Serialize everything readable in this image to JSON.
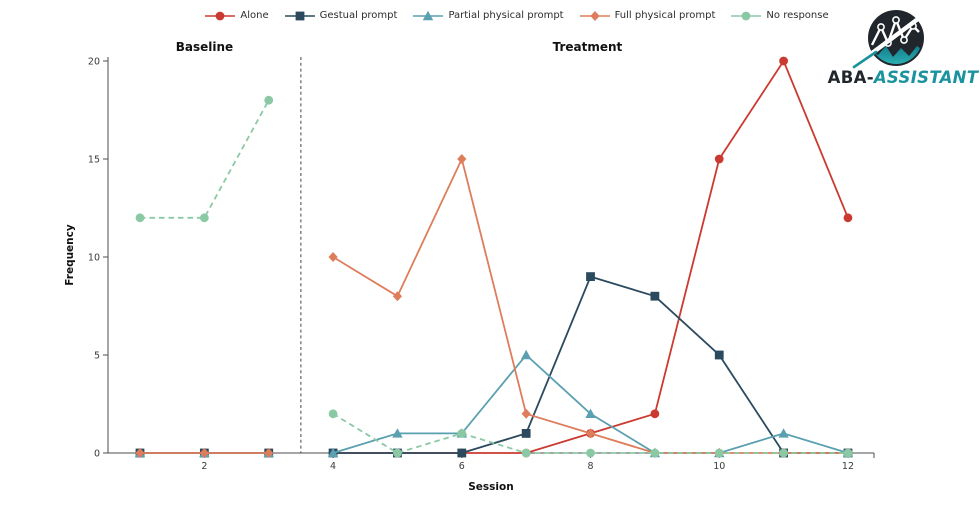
{
  "legend_note": "legend is generated from chart_data.series",
  "chart_data": {
    "type": "line",
    "xlabel": "Session",
    "ylabel": "Frequency",
    "x": [
      1,
      2,
      3,
      4,
      5,
      6,
      7,
      8,
      9,
      10,
      11,
      12
    ],
    "x_ticks": [
      2,
      4,
      6,
      8,
      10,
      12
    ],
    "y_ticks": [
      0,
      5,
      10,
      15,
      20
    ],
    "ylim": [
      0,
      20
    ],
    "legend_position": "top-center",
    "grid": false,
    "phase_separator_x": 3.5,
    "phases": [
      {
        "label": "Baseline",
        "start": 1,
        "end": 3
      },
      {
        "label": "Treatment",
        "start": 4,
        "end": 12
      }
    ],
    "series": [
      {
        "name": "Alone",
        "color": "#cb3a30",
        "marker": "circle",
        "line": "solid",
        "values": [
          0,
          0,
          0,
          0,
          0,
          0,
          0,
          1,
          2,
          15,
          20,
          12
        ]
      },
      {
        "name": "Gestual prompt",
        "color": "#2c4a5e",
        "marker": "square",
        "line": "solid",
        "values": [
          0,
          0,
          0,
          0,
          0,
          0,
          1,
          9,
          8,
          5,
          0,
          0
        ]
      },
      {
        "name": "Partial physical prompt",
        "color": "#5aa0b0",
        "marker": "triangle",
        "line": "solid",
        "values": [
          0,
          0,
          0,
          0,
          1,
          1,
          5,
          2,
          0,
          0,
          1,
          0
        ]
      },
      {
        "name": "Full physical prompt",
        "color": "#de7d5b",
        "marker": "diamond",
        "line": "solid",
        "values": [
          0,
          0,
          0,
          10,
          8,
          15,
          2,
          1,
          0,
          0,
          0,
          0
        ]
      },
      {
        "name": "No response",
        "color": "#8bc9a5",
        "marker": "circle",
        "line": "dashed",
        "values": [
          12,
          12,
          18,
          2,
          0,
          1,
          0,
          0,
          0,
          0,
          0,
          0
        ]
      }
    ]
  },
  "logo": {
    "text_primary": "ABA-",
    "text_secondary": "ASSISTANT",
    "color_primary": "#20262b",
    "color_secondary": "#1b939e",
    "color_teal_light": "#2fb4b4"
  }
}
